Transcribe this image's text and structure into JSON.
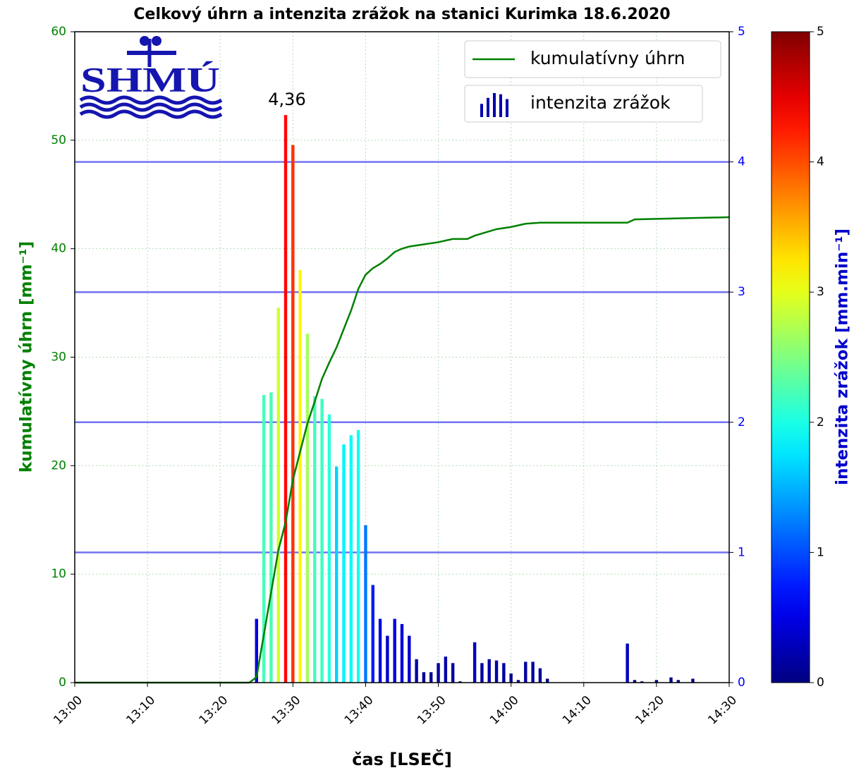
{
  "chart_data": {
    "type": "bar-line",
    "title": "Celkový úhrn a intenzita zrážok na stanici Kurimka 18.6.2020",
    "xlabel": "čas [LSEČ]",
    "ylabel": "kumulatívny úhrn [mm⁻¹]",
    "y2label": "intenzita zrážok [mm.min⁻¹]",
    "logo_text": "SHMÚ",
    "annotation": "4,36",
    "xlim": [
      "13:00",
      "14:30"
    ],
    "xticks": [
      "13:00",
      "13:10",
      "13:20",
      "13:30",
      "13:40",
      "13:50",
      "14:00",
      "14:10",
      "14:20",
      "14:30"
    ],
    "ylim": [
      0,
      60
    ],
    "yticks": [
      0,
      10,
      20,
      30,
      40,
      50,
      60
    ],
    "y2lim": [
      0,
      5
    ],
    "y2ticks": [
      0,
      1,
      2,
      3,
      4,
      5
    ],
    "grid": true,
    "y2grid": [
      1,
      2,
      3,
      4
    ],
    "legend": "upper right",
    "colorbar": {
      "lim": [
        0,
        5
      ],
      "ticks": [
        0,
        1,
        2,
        3,
        4,
        5
      ],
      "colormap": "jet"
    },
    "series": [
      {
        "name": "kumulatívny úhrn",
        "type": "line",
        "color": "#008000",
        "x": [
          "13:00",
          "13:24",
          "13:25",
          "13:26",
          "13:27",
          "13:28",
          "13:29",
          "13:30",
          "13:31",
          "13:32",
          "13:33",
          "13:34",
          "13:35",
          "13:36",
          "13:37",
          "13:38",
          "13:39",
          "13:40",
          "13:41",
          "13:42",
          "13:43",
          "13:44",
          "13:45",
          "13:46",
          "13:48",
          "13:50",
          "13:52",
          "13:54",
          "13:55",
          "13:58",
          "14:00",
          "14:02",
          "14:04",
          "14:16",
          "14:17",
          "14:23",
          "14:30"
        ],
        "values": [
          0,
          0,
          0.5,
          4.4,
          8.3,
          12.2,
          14.8,
          18.7,
          21.3,
          23.9,
          25.9,
          28.0,
          29.5,
          30.9,
          32.6,
          34.3,
          36.3,
          37.6,
          38.2,
          38.6,
          39.1,
          39.7,
          40.0,
          40.2,
          40.4,
          40.6,
          40.9,
          40.9,
          41.2,
          41.8,
          42.0,
          42.3,
          42.4,
          42.4,
          42.7,
          42.8,
          42.9
        ]
      },
      {
        "name": "intenzita zrážok",
        "type": "bar",
        "axis": "y2",
        "colormap": "jet",
        "x": [
          "13:25",
          "13:26",
          "13:27",
          "13:28",
          "13:29",
          "13:30",
          "13:31",
          "13:32",
          "13:33",
          "13:34",
          "13:35",
          "13:36",
          "13:37",
          "13:38",
          "13:39",
          "13:40",
          "13:41",
          "13:42",
          "13:43",
          "13:44",
          "13:45",
          "13:46",
          "13:47",
          "13:48",
          "13:49",
          "13:50",
          "13:51",
          "13:52",
          "13:53",
          "13:54",
          "13:55",
          "13:56",
          "13:57",
          "13:58",
          "13:59",
          "14:00",
          "14:01",
          "14:02",
          "14:03",
          "14:04",
          "14:05",
          "14:06",
          "14:07",
          "14:08",
          "14:09",
          "14:10",
          "14:11",
          "14:12",
          "14:13",
          "14:14",
          "14:15",
          "14:16",
          "14:17",
          "14:18",
          "14:19",
          "14:20",
          "14:21",
          "14:22",
          "14:23",
          "14:24",
          "14:25"
        ],
        "values": [
          0.49,
          2.21,
          2.23,
          2.88,
          4.36,
          4.13,
          3.17,
          2.68,
          2.2,
          2.18,
          2.06,
          1.66,
          1.83,
          1.9,
          1.94,
          1.21,
          0.75,
          0.49,
          0.36,
          0.49,
          0.45,
          0.36,
          0.18,
          0.08,
          0.08,
          0.15,
          0.2,
          0.15,
          0.01,
          0,
          0.31,
          0.15,
          0.18,
          0.17,
          0.15,
          0.07,
          0.02,
          0.16,
          0.16,
          0.11,
          0.03,
          0,
          0,
          0,
          0,
          0,
          0,
          0,
          0,
          0,
          0,
          0.3,
          0.02,
          0.01,
          0,
          0.02,
          0,
          0.04,
          0.02,
          0,
          0.03
        ]
      }
    ]
  }
}
